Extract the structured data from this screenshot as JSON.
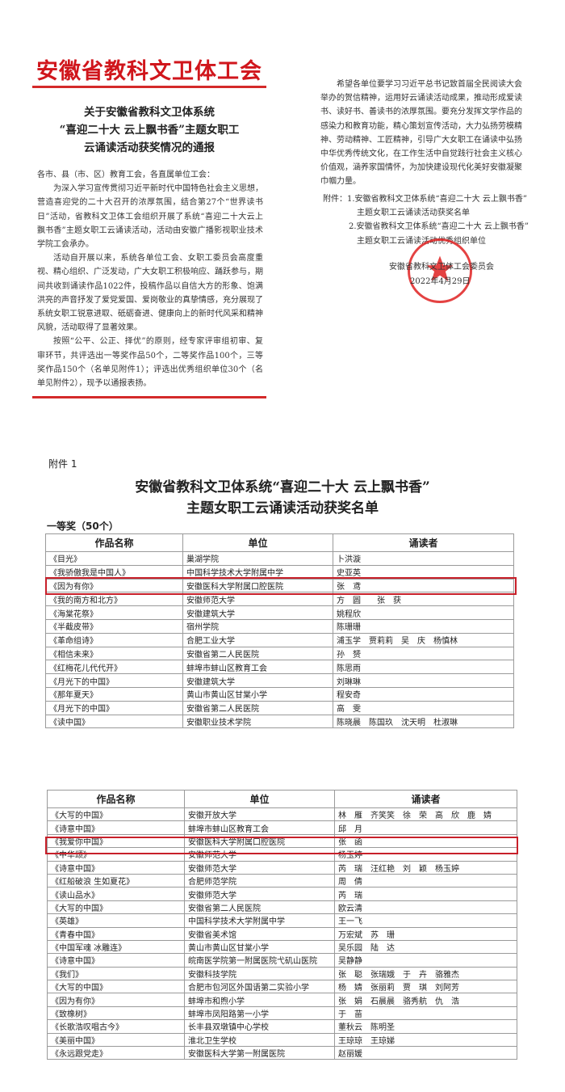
{
  "notice": {
    "masthead": "安徽省教科文卫体工会",
    "title_lines": [
      "关于安徽省教科文卫体系统",
      "“喜迎二十大 云上飘书香”主题女职工",
      "云诵读活动获奖情况的通报"
    ],
    "salutation": "各市、县（市、区）教育工会，各直属单位工会：",
    "paragraphs_left": [
      "为深入学习宣传贯彻习近平新时代中国特色社会主义思想，营造喜迎党的二十大召开的浓厚氛围，结合第27个“世界读书日”活动，省教科文卫体工会组织开展了系统“喜迎二十大云上飘书香”主题女职工云诵读活动，活动由安徽广播影视职业技术学院工会承办。",
      "活动自开展以来，系统各单位工会、女职工委员会高度重视、精心组织、广泛发动，广大女职工积极响应、踊跃参与，期间共收到诵读作品1022件，投稿作品以自信大方的形象、饱满洪亮的声音抒发了爱党爱国、爱岗敬业的真挚情感，充分展现了系统女职工锐意进取、砥砺奋进、健康向上的新时代风采和精神风貌，活动取得了显著效果。",
      "按照“公平、公正、择优”的原则，经专家评审组初审、复审环节，共评选出一等奖作品50个，二等奖作品100个，三等奖作品150个（名单见附件1）；评选出优秀组织单位30个（名单见附件2），现予以通报表扬。"
    ],
    "paragraph_right": "希望各单位要学习习近平总书记致首届全民阅读大会举办的贺信精神，运用好云诵读活动成果，推动形成爱读书、读好书、善读书的浓厚氛围。要充分发挥文学作品的感染力和教育功能，精心策划宣传活动，大力弘扬劳模精神、劳动精神、工匠精神，引导广大女职工在诵读中弘扬中华优秀传统文化，在工作生活中自觉践行社会主义核心价值观，涵养家国情怀，为加快建设现代化美好安徽凝聚巾帼力量。",
    "attachments": [
      "附件：1.安徽省教科文卫体系统“喜迎二十大 云上飘书香”",
      "主题女职工云诵读活动获奖名单",
      "2.安徽省教科文卫体系统“喜迎二十大 云上飘书香”",
      "主题女职工云诵读活动优秀组织单位"
    ],
    "signature": "安徽省教科文卫体工会委员会",
    "date": "2022年4月29日",
    "seal_text": "安徽省教科文卫体工会委员会",
    "accent_color": "#d0161c"
  },
  "annex": {
    "label": "附件 1",
    "title_line1": "安徽省教科文卫体系统“喜迎二十大 云上飘书香”",
    "title_line2": "主题女职工云诵读活动获奖名单",
    "prize_label": "一等奖（50个）",
    "columns": [
      "作品名称",
      "单位",
      "诵读者"
    ],
    "table1": [
      [
        "《目光》",
        "巢湖学院",
        "卜洪漩"
      ],
      [
        "《我骄傲我是中国人》",
        "中国科学技术大学附属中学",
        "史亚英"
      ],
      [
        "《因为有你》",
        "安徽医科大学附属口腔医院",
        "张　鸢"
      ],
      [
        "《我的南方和北方》",
        "安徽师范大学",
        "方　圆　　张　获"
      ],
      [
        "《海棠花祭》",
        "安徽建筑大学",
        "姚程欣"
      ],
      [
        "《半截皮带》",
        "宿州学院",
        "陈珊珊"
      ],
      [
        "《革命组诗》",
        "合肥工业大学",
        "浦玉学　贾莉莉　吴　庆　杨慎林"
      ],
      [
        "《相信未来》",
        "安徽省第二人民医院",
        "孙　赟"
      ],
      [
        "《红梅花儿代代开》",
        "蚌埠市蚌山区教育工会",
        "陈思雨"
      ],
      [
        "《月光下的中国》",
        "安徽建筑大学",
        "刘琳琳"
      ],
      [
        "《那年夏天》",
        "黄山市黄山区甘棠小学",
        "程安奇"
      ],
      [
        "《月光下的中国》",
        "安徽省第二人民医院",
        "高　雯"
      ],
      [
        "《读中国》",
        "安徽职业技术学院",
        "陈晓晨　陈国玖　沈天明　杜淑琳"
      ]
    ],
    "table2": [
      [
        "《大写的中国》",
        "安徽开放大学",
        "林　雁　齐笑笑　徐　荣　高　欣　鹿　婧"
      ],
      [
        "《诗意中国》",
        "蚌埠市蚌山区教育工会",
        "邱　月"
      ],
      [
        "《我爱你中国》",
        "安徽医科大学附属口腔医院",
        "张　函"
      ],
      [
        "《中华颂》",
        "安徽师范大学",
        "杨玉婷"
      ],
      [
        "《诗意中国》",
        "安徽师范大学",
        "芮　瑞　汪红艳　刘　颖　杨玉婷"
      ],
      [
        "《红船破浪 生如夏花》",
        "合肥师范学院",
        "周　倩"
      ],
      [
        "《读山品水》",
        "安徽师范大学",
        "芮　瑞"
      ],
      [
        "《大写的中国》",
        "安徽省第二人民医院",
        "欧云清"
      ],
      [
        "《英雄》",
        "中国科学技术大学附属中学",
        "王一飞"
      ],
      [
        "《青春中国》",
        "安徽省美术馆",
        "万宏斌　苏　珊"
      ],
      [
        "《中国军魂 冰雕连》",
        "黄山市黄山区甘棠小学",
        "吴乐园　陆　达"
      ],
      [
        "《诗意中国》",
        "皖南医学院第一附属医院弋矶山医院",
        "吴静静"
      ],
      [
        "《我们》",
        "安徽科技学院",
        "张　聪　张瑞娥　于　卉　骆雅杰"
      ],
      [
        "《大写的中国》",
        "合肥市包河区外国语第二实验小学",
        "杨　婧　张丽莉　贾　琪　刘阿芳"
      ],
      [
        "《因为有你》",
        "蚌埠市和煦小学",
        "张　娟　石晨晨　骆秀航　仇　浩"
      ],
      [
        "《致橡树》",
        "蚌埠市凤阳路第一小学",
        "于　苗"
      ],
      [
        "《长歌浩叹唱古今》",
        "长丰县双墩镇中心学校",
        "董秋云　陈明圣"
      ],
      [
        "《美丽中国》",
        "淮北卫生学校",
        "王琼琼　王琼娣"
      ],
      [
        "《永远跟党走》",
        "安徽医科大学第一附属医院",
        "赵丽媛"
      ]
    ],
    "highlight_color": "#c8202a"
  }
}
